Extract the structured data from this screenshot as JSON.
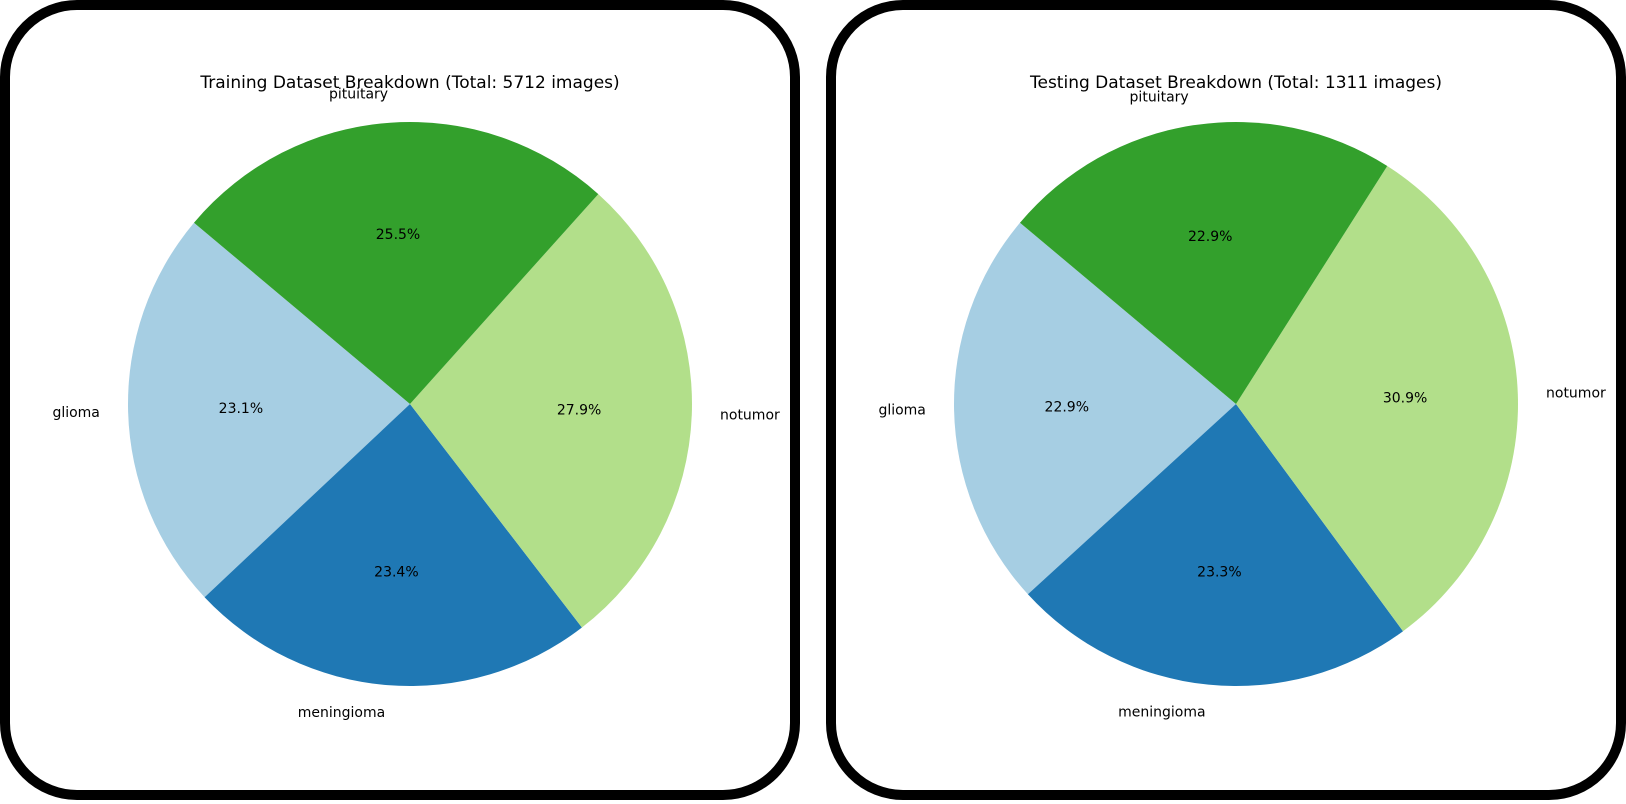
{
  "chart_data": [
    {
      "type": "pie",
      "title": "Training Dataset Breakdown (Total: 5712 images)",
      "categories": [
        "glioma",
        "meningioma",
        "notumor",
        "pituitary"
      ],
      "values": [
        23.1,
        23.4,
        27.9,
        25.5
      ],
      "value_labels": [
        "23.1%",
        "23.4%",
        "27.9%",
        "25.5%"
      ],
      "colors": [
        "#a6cee3",
        "#1f78b4",
        "#b2df8a",
        "#33a02c"
      ],
      "legend": "none"
    },
    {
      "type": "pie",
      "title": "Testing Dataset Breakdown (Total: 1311 images)",
      "categories": [
        "glioma",
        "meningioma",
        "notumor",
        "pituitary"
      ],
      "values": [
        22.9,
        23.3,
        30.9,
        22.9
      ],
      "value_labels": [
        "22.9%",
        "23.3%",
        "30.9%",
        "22.9%"
      ],
      "colors": [
        "#a6cee3",
        "#1f78b4",
        "#b2df8a",
        "#33a02c"
      ],
      "legend": "none"
    }
  ]
}
